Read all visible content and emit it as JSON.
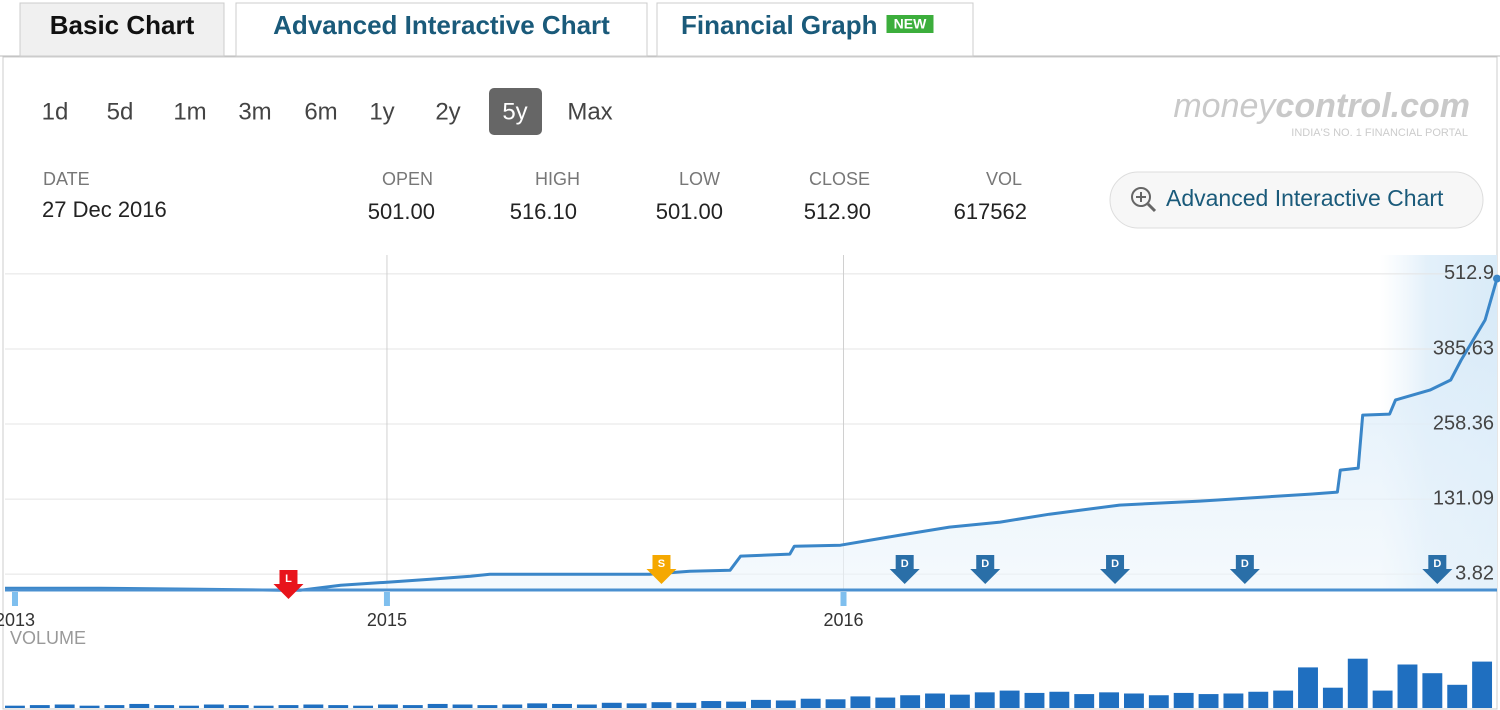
{
  "tabs": [
    {
      "label": "Basic Chart",
      "active": true
    },
    {
      "label": "Advanced Interactive Chart"
    },
    {
      "label": "Financial Graph",
      "badge": "NEW"
    }
  ],
  "ranges": [
    {
      "label": "1d"
    },
    {
      "label": "5d"
    },
    {
      "label": "1m"
    },
    {
      "label": "3m"
    },
    {
      "label": "6m"
    },
    {
      "label": "1y"
    },
    {
      "label": "2y"
    },
    {
      "label": "5y",
      "selected": true
    },
    {
      "label": "Max"
    }
  ],
  "logo": {
    "light": "money",
    "bold": "control.com",
    "tagline": "INDIA'S NO. 1 FINANCIAL PORTAL"
  },
  "quote": {
    "date_label": "DATE",
    "date": "27 Dec 2016",
    "fields": [
      {
        "label": "OPEN",
        "value": "501.00"
      },
      {
        "label": "HIGH",
        "value": "516.10"
      },
      {
        "label": "LOW",
        "value": "501.00"
      },
      {
        "label": "CLOSE",
        "value": "512.90"
      },
      {
        "label": "VOL",
        "value": "617562"
      }
    ]
  },
  "advanced_button": "Advanced Interactive Chart",
  "chart_data": {
    "type": "line",
    "color": "#3a86c8",
    "x": [
      0,
      6.4,
      13.1,
      18.4,
      19.8,
      22.5,
      25.6,
      28.5,
      31.2,
      32.5,
      36.5,
      43.2,
      45.9,
      48.6,
      49.3,
      52.6,
      52.9,
      56.0,
      60.0,
      63.3,
      66.7,
      70.0,
      74.7,
      80.1,
      87.5,
      89.3,
      89.5,
      90.7,
      91.0,
      92.8,
      93.2,
      95.5,
      96.9,
      97.6,
      99.2,
      100
    ],
    "values": [
      -19.9,
      -19.9,
      -21.6,
      -23.3,
      -23.3,
      -14.8,
      -9.8,
      -4.7,
      0.4,
      3.8,
      3.8,
      3.8,
      8.9,
      10.6,
      34.4,
      37.8,
      51.3,
      53.0,
      70.0,
      83.6,
      92.1,
      105.6,
      120.9,
      127.7,
      139.6,
      143.0,
      180.3,
      183.7,
      273.6,
      275.3,
      299.1,
      316.0,
      333.0,
      366.9,
      434.8,
      505
    ],
    "xlim": [
      0,
      100
    ],
    "xticks": [
      {
        "value": 0.67,
        "label": "2013"
      },
      {
        "value": 25.6,
        "label": "2015"
      },
      {
        "value": 56.2,
        "label": "2016"
      }
    ],
    "ylim": [
      -23,
      545
    ],
    "yticks": [
      3.82,
      131.09,
      258.36,
      385.63,
      512.9
    ],
    "grid": true,
    "events": [
      {
        "label": "L",
        "x": 19.0,
        "color": "#e8141b"
      },
      {
        "label": "S",
        "x": 44.0,
        "color": "#f5a800"
      },
      {
        "label": "D",
        "x": 60.3,
        "color": "#2a6fa8"
      },
      {
        "label": "D",
        "x": 65.7,
        "color": "#2a6fa8"
      },
      {
        "label": "D",
        "x": 74.4,
        "color": "#2a6fa8"
      },
      {
        "label": "D",
        "x": 83.1,
        "color": "#2a6fa8"
      },
      {
        "label": "D",
        "x": 96.0,
        "color": "#2a6fa8"
      }
    ],
    "volume": {
      "label": "VOLUME",
      "color": "#1f6fc0",
      "ylim": [
        0,
        100
      ],
      "values": [
        4,
        5,
        6,
        4,
        5,
        7,
        5,
        4,
        6,
        5,
        4,
        5,
        6,
        5,
        4,
        6,
        5,
        7,
        6,
        5,
        6,
        8,
        7,
        6,
        9,
        8,
        10,
        9,
        12,
        11,
        14,
        13,
        16,
        15,
        20,
        18,
        22,
        25,
        23,
        27,
        30,
        26,
        28,
        24,
        27,
        25,
        22,
        26,
        24,
        25,
        28,
        30,
        70,
        35,
        85,
        30,
        75,
        60,
        40,
        80
      ]
    }
  }
}
